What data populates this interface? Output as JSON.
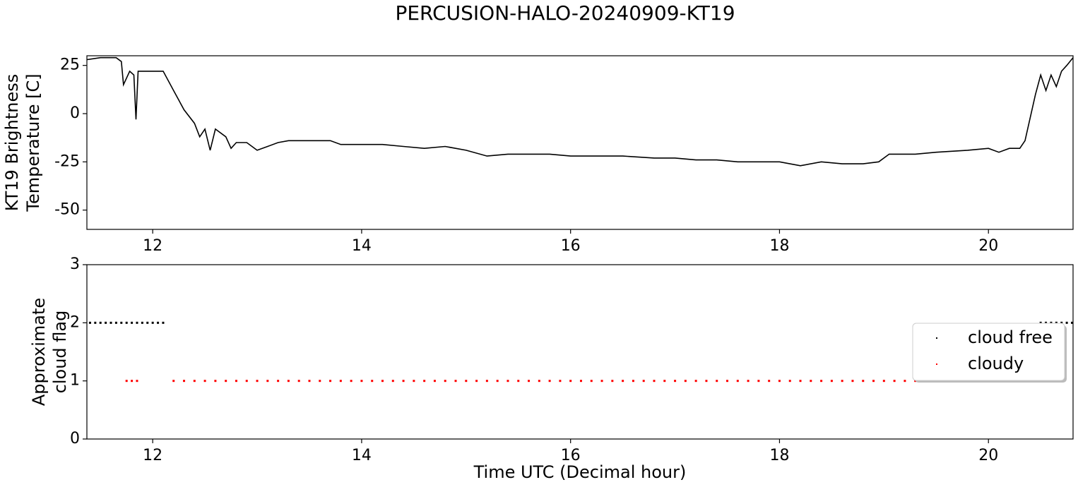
{
  "title": "PERCUSION-HALO-20240909-KT19",
  "chart_data": [
    {
      "type": "line",
      "ylabel": [
        "KT19 Brightness",
        "Temperature [C]"
      ],
      "xlim": [
        11.37,
        20.81
      ],
      "xticks": [
        12,
        14,
        16,
        18,
        20
      ],
      "ylim": [
        -60,
        30
      ],
      "yticks": [
        -50,
        -25,
        0,
        25
      ],
      "color": "#000000",
      "x": [
        11.37,
        11.5,
        11.65,
        11.7,
        11.72,
        11.78,
        11.82,
        11.84,
        11.86,
        12.0,
        12.1,
        12.2,
        12.3,
        12.4,
        12.45,
        12.5,
        12.55,
        12.6,
        12.7,
        12.75,
        12.8,
        12.9,
        13.0,
        13.1,
        13.2,
        13.3,
        13.5,
        13.7,
        13.8,
        14.0,
        14.2,
        14.4,
        14.6,
        14.8,
        15.0,
        15.2,
        15.4,
        15.6,
        15.8,
        16.0,
        16.2,
        16.5,
        16.8,
        17.0,
        17.2,
        17.4,
        17.6,
        17.8,
        18.0,
        18.2,
        18.4,
        18.6,
        18.8,
        18.95,
        19.05,
        19.3,
        19.5,
        19.8,
        20.0,
        20.1,
        20.2,
        20.3,
        20.35,
        20.45,
        20.5,
        20.55,
        20.6,
        20.65,
        20.7,
        20.75,
        20.81
      ],
      "values": [
        28,
        29,
        29,
        27,
        15,
        22,
        20,
        -3,
        22,
        22,
        22,
        12,
        2,
        -5,
        -12,
        -8,
        -19,
        -8,
        -12,
        -18,
        -15,
        -15,
        -19,
        -17,
        -15,
        -14,
        -14,
        -14,
        -16,
        -16,
        -16,
        -17,
        -18,
        -17,
        -19,
        -22,
        -21,
        -21,
        -21,
        -22,
        -22,
        -22,
        -23,
        -23,
        -24,
        -24,
        -25,
        -25,
        -25,
        -27,
        -25,
        -26,
        -26,
        -25,
        -21,
        -21,
        -20,
        -19,
        -18,
        -20,
        -18,
        -18,
        -14,
        10,
        20,
        12,
        20,
        14,
        22,
        25,
        29
      ]
    },
    {
      "type": "scatter",
      "ylabel": [
        "Approximate",
        "cloud flag"
      ],
      "xlabel": "Time UTC (Decimal hour)",
      "xlim": [
        11.37,
        20.81
      ],
      "xticks": [
        12,
        14,
        16,
        18,
        20
      ],
      "ylim": [
        0,
        3
      ],
      "yticks": [
        0,
        1,
        2,
        3
      ],
      "legend": "center right",
      "series": [
        {
          "name": "cloud free",
          "color": "#000000",
          "x": [
            11.4,
            11.45,
            11.5,
            11.55,
            11.6,
            11.65,
            11.7,
            11.75,
            11.8,
            11.85,
            11.9,
            11.95,
            12.0,
            12.05,
            12.1,
            20.5,
            20.55,
            20.6,
            20.65,
            20.7,
            20.75,
            20.8
          ],
          "values": [
            2,
            2,
            2,
            2,
            2,
            2,
            2,
            2,
            2,
            2,
            2,
            2,
            2,
            2,
            2,
            2,
            2,
            2,
            2,
            2,
            2,
            2
          ]
        },
        {
          "name": "cloudy",
          "color": "#ff0000",
          "x": [
            11.75,
            11.8,
            11.85,
            12.2,
            12.3,
            12.4,
            12.5,
            12.6,
            12.7,
            12.8,
            12.9,
            13.0,
            13.1,
            13.2,
            13.3,
            13.4,
            13.5,
            13.6,
            13.7,
            13.8,
            13.9,
            14.0,
            14.1,
            14.2,
            14.3,
            14.4,
            14.5,
            14.6,
            14.7,
            14.8,
            14.9,
            15.0,
            15.1,
            15.2,
            15.3,
            15.4,
            15.5,
            15.6,
            15.7,
            15.8,
            15.9,
            16.0,
            16.1,
            16.2,
            16.3,
            16.4,
            16.5,
            16.6,
            16.7,
            16.8,
            16.9,
            17.0,
            17.1,
            17.2,
            17.3,
            17.4,
            17.5,
            17.6,
            17.7,
            17.8,
            17.9,
            18.0,
            18.1,
            18.2,
            18.3,
            18.4,
            18.5,
            18.6,
            18.7,
            18.8,
            18.9,
            19.0,
            19.1,
            19.2,
            19.3,
            19.4,
            19.5,
            19.6,
            19.7,
            19.8,
            19.9,
            20.0,
            20.1,
            20.2,
            20.3,
            20.4
          ],
          "values": [
            1,
            1,
            1,
            1,
            1,
            1,
            1,
            1,
            1,
            1,
            1,
            1,
            1,
            1,
            1,
            1,
            1,
            1,
            1,
            1,
            1,
            1,
            1,
            1,
            1,
            1,
            1,
            1,
            1,
            1,
            1,
            1,
            1,
            1,
            1,
            1,
            1,
            1,
            1,
            1,
            1,
            1,
            1,
            1,
            1,
            1,
            1,
            1,
            1,
            1,
            1,
            1,
            1,
            1,
            1,
            1,
            1,
            1,
            1,
            1,
            1,
            1,
            1,
            1,
            1,
            1,
            1,
            1,
            1,
            1,
            1,
            1,
            1,
            1,
            1,
            1,
            1,
            1,
            1,
            1,
            1,
            1,
            1,
            1,
            1,
            1
          ]
        }
      ]
    }
  ]
}
